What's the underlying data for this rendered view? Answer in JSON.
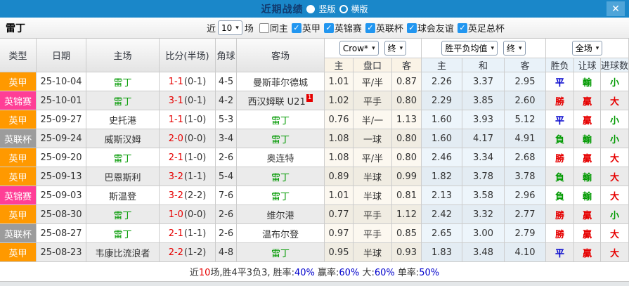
{
  "topbar": {
    "title": "近期战绩",
    "radio_vertical": "竖版",
    "radio_horizontal": "横版",
    "close": "✕"
  },
  "icons": {
    "caret": "▾",
    "check": "✓"
  },
  "controls": {
    "team": "雷丁",
    "recent_label": "近",
    "recent_value": "10",
    "matches_label": "场",
    "same_home_label": "同主",
    "filters": [
      "英甲",
      "英锦赛",
      "英联杯",
      "球会友谊",
      "英足总杯"
    ]
  },
  "table": {
    "columns": [
      "类型",
      "日期",
      "主场",
      "比分(半场)",
      "角球",
      "客场"
    ],
    "selects": {
      "source": "Crow*",
      "final_a": "终",
      "mean": "胜平负均值",
      "final_b": "终",
      "scope": "全场"
    },
    "subcolumns": [
      "主",
      "盘口",
      "客",
      "主",
      "和",
      "客",
      "胜负",
      "让球",
      "进球数"
    ],
    "rows": [
      {
        "league": "英甲",
        "league_color": "orange",
        "date": "25-10-04",
        "home": "雷丁",
        "home_is_self": true,
        "score_ft": "1-1",
        "score_ht": "(0-1)",
        "corners": "4-5",
        "away": "曼斯菲尔德城",
        "away_is_self": false,
        "away_rank_badge": "",
        "odds_home": "1.01",
        "odds_handicap": "平/半",
        "odds_away": "0.87",
        "mean_home": "2.26",
        "mean_draw": "3.37",
        "mean_away": "2.95",
        "result_outcome": {
          "text": "平",
          "color": "blue"
        },
        "result_handicap": {
          "text": "輸",
          "color": "green"
        },
        "result_goals": {
          "text": "小",
          "color": "green"
        }
      },
      {
        "league": "英锦赛",
        "league_color": "pink",
        "date": "25-10-01",
        "home": "雷丁",
        "home_is_self": true,
        "score_ft": "3-1",
        "score_ht": "(0-1)",
        "corners": "4-2",
        "away": "西汉姆联 U21",
        "away_is_self": false,
        "away_rank_badge": "1",
        "odds_home": "1.02",
        "odds_handicap": "平手",
        "odds_away": "0.80",
        "mean_home": "2.29",
        "mean_draw": "3.85",
        "mean_away": "2.60",
        "result_outcome": {
          "text": "勝",
          "color": "red"
        },
        "result_handicap": {
          "text": "贏",
          "color": "red"
        },
        "result_goals": {
          "text": "大",
          "color": "red"
        }
      },
      {
        "league": "英甲",
        "league_color": "orange",
        "date": "25-09-27",
        "home": "史托港",
        "home_is_self": false,
        "score_ft": "1-1",
        "score_ht": "(1-0)",
        "corners": "5-3",
        "away": "雷丁",
        "away_is_self": true,
        "away_rank_badge": "",
        "odds_home": "0.76",
        "odds_handicap": "半/一",
        "odds_away": "1.13",
        "mean_home": "1.60",
        "mean_draw": "3.93",
        "mean_away": "5.12",
        "result_outcome": {
          "text": "平",
          "color": "blue"
        },
        "result_handicap": {
          "text": "贏",
          "color": "red"
        },
        "result_goals": {
          "text": "小",
          "color": "green"
        }
      },
      {
        "league": "英联杯",
        "league_color": "gray",
        "date": "25-09-24",
        "home": "威斯汉姆",
        "home_is_self": false,
        "score_ft": "2-0",
        "score_ht": "(0-0)",
        "corners": "3-4",
        "away": "雷丁",
        "away_is_self": true,
        "away_rank_badge": "",
        "odds_home": "1.08",
        "odds_handicap": "一球",
        "odds_away": "0.80",
        "mean_home": "1.60",
        "mean_draw": "4.17",
        "mean_away": "4.91",
        "result_outcome": {
          "text": "負",
          "color": "green"
        },
        "result_handicap": {
          "text": "輸",
          "color": "green"
        },
        "result_goals": {
          "text": "小",
          "color": "green"
        }
      },
      {
        "league": "英甲",
        "league_color": "orange",
        "date": "25-09-20",
        "home": "雷丁",
        "home_is_self": true,
        "score_ft": "2-1",
        "score_ht": "(1-0)",
        "corners": "2-6",
        "away": "奥连特",
        "away_is_self": false,
        "away_rank_badge": "",
        "odds_home": "1.08",
        "odds_handicap": "平/半",
        "odds_away": "0.80",
        "mean_home": "2.46",
        "mean_draw": "3.34",
        "mean_away": "2.68",
        "result_outcome": {
          "text": "勝",
          "color": "red"
        },
        "result_handicap": {
          "text": "贏",
          "color": "red"
        },
        "result_goals": {
          "text": "大",
          "color": "red"
        }
      },
      {
        "league": "英甲",
        "league_color": "orange",
        "date": "25-09-13",
        "home": "巴恩斯利",
        "home_is_self": false,
        "score_ft": "3-2",
        "score_ht": "(1-1)",
        "corners": "5-4",
        "away": "雷丁",
        "away_is_self": true,
        "away_rank_badge": "",
        "odds_home": "0.89",
        "odds_handicap": "半球",
        "odds_away": "0.99",
        "mean_home": "1.82",
        "mean_draw": "3.78",
        "mean_away": "3.78",
        "result_outcome": {
          "text": "負",
          "color": "green"
        },
        "result_handicap": {
          "text": "輸",
          "color": "green"
        },
        "result_goals": {
          "text": "大",
          "color": "red"
        }
      },
      {
        "league": "英锦赛",
        "league_color": "pink",
        "date": "25-09-03",
        "home": "斯温登",
        "home_is_self": false,
        "score_ft": "3-2",
        "score_ht": "(2-2)",
        "corners": "7-6",
        "away": "雷丁",
        "away_is_self": true,
        "away_rank_badge": "",
        "odds_home": "1.01",
        "odds_handicap": "半球",
        "odds_away": "0.81",
        "mean_home": "2.13",
        "mean_draw": "3.58",
        "mean_away": "2.96",
        "result_outcome": {
          "text": "負",
          "color": "green"
        },
        "result_handicap": {
          "text": "輸",
          "color": "green"
        },
        "result_goals": {
          "text": "大",
          "color": "red"
        }
      },
      {
        "league": "英甲",
        "league_color": "orange",
        "date": "25-08-30",
        "home": "雷丁",
        "home_is_self": true,
        "score_ft": "1-0",
        "score_ht": "(0-0)",
        "corners": "2-6",
        "away": "维尔港",
        "away_is_self": false,
        "away_rank_badge": "",
        "odds_home": "0.77",
        "odds_handicap": "平手",
        "odds_away": "1.12",
        "mean_home": "2.42",
        "mean_draw": "3.32",
        "mean_away": "2.77",
        "result_outcome": {
          "text": "勝",
          "color": "red"
        },
        "result_handicap": {
          "text": "贏",
          "color": "red"
        },
        "result_goals": {
          "text": "小",
          "color": "green"
        }
      },
      {
        "league": "英联杯",
        "league_color": "gray",
        "date": "25-08-27",
        "home": "雷丁",
        "home_is_self": true,
        "score_ft": "2-1",
        "score_ht": "(1-1)",
        "corners": "2-6",
        "away": "温布尔登",
        "away_is_self": false,
        "away_rank_badge": "",
        "odds_home": "0.97",
        "odds_handicap": "平手",
        "odds_away": "0.85",
        "mean_home": "2.65",
        "mean_draw": "3.00",
        "mean_away": "2.79",
        "result_outcome": {
          "text": "勝",
          "color": "red"
        },
        "result_handicap": {
          "text": "贏",
          "color": "red"
        },
        "result_goals": {
          "text": "大",
          "color": "red"
        }
      },
      {
        "league": "英甲",
        "league_color": "orange",
        "date": "25-08-23",
        "home": "韦康比流浪者",
        "home_is_self": false,
        "score_ft": "2-2",
        "score_ht": "(1-2)",
        "corners": "4-8",
        "away": "雷丁",
        "away_is_self": true,
        "away_rank_badge": "",
        "odds_home": "0.95",
        "odds_handicap": "半球",
        "odds_away": "0.93",
        "mean_home": "1.83",
        "mean_draw": "3.48",
        "mean_away": "4.10",
        "result_outcome": {
          "text": "平",
          "color": "blue"
        },
        "result_handicap": {
          "text": "贏",
          "color": "red"
        },
        "result_goals": {
          "text": "大",
          "color": "red"
        }
      }
    ]
  },
  "footer": {
    "segments": [
      {
        "text": "近",
        "color": "dark"
      },
      {
        "text": "10",
        "color": "red"
      },
      {
        "text": "场,胜4平3负3, 胜率:",
        "color": "dark"
      },
      {
        "text": "40%",
        "color": "blue"
      },
      {
        "text": " 赢率:",
        "color": "dark"
      },
      {
        "text": "60%",
        "color": "blue"
      },
      {
        "text": " 大:",
        "color": "dark"
      },
      {
        "text": "60%",
        "color": "blue"
      },
      {
        "text": " 单率:",
        "color": "dark"
      },
      {
        "text": "50%",
        "color": "blue"
      }
    ]
  },
  "colors": {
    "topbar_blue": "#1a87c9",
    "badge_league_one": "#ff9900",
    "badge_trophy": "#ff3e96",
    "badge_cup": "#9c9c9c",
    "win_red": "#e60000",
    "lose_green": "#009900",
    "draw_blue": "#0000cc",
    "checkbox_blue": "#2196f0"
  }
}
